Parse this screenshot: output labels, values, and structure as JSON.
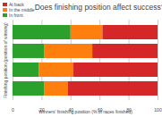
{
  "chart_data": {
    "type": "bar",
    "orientation": "horizontal",
    "stacked": true,
    "title": "Does finishing position affect success?",
    "x_label": "Winners' finishing position (% of races finished)",
    "y_label": "Finishing position (position of winning)",
    "categories": [
      null,
      null,
      null,
      null
    ],
    "series": [
      {
        "name": "In front",
        "color": "#2ca02c",
        "values": [
          40,
          22,
          18,
          22
        ]
      },
      {
        "name": "In the middle",
        "color": "#ff7f0e",
        "values": [
          22,
          33,
          24,
          16
        ]
      },
      {
        "name": "At back",
        "color": "#d62728",
        "values": [
          38,
          45,
          58,
          62
        ]
      }
    ],
    "xlim": [
      0,
      100
    ],
    "xticks": [
      0,
      20,
      40,
      60,
      80,
      100
    ],
    "grid": true,
    "legend": "top-left",
    "tick_labels": "x"
  }
}
